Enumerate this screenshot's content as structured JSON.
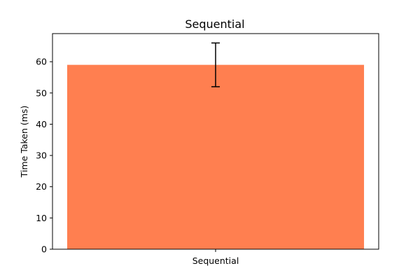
{
  "chart_data": {
    "type": "bar",
    "title": "Sequential",
    "xlabel": "",
    "ylabel": "Time Taken (ms)",
    "categories": [
      "Sequential"
    ],
    "values": [
      59
    ],
    "error": [
      7
    ],
    "ylim": [
      0,
      69
    ],
    "yticks": [
      0,
      10,
      20,
      30,
      40,
      50,
      60
    ],
    "grid": false,
    "colors": {
      "bar": "#ff7f50",
      "error_bar": "#000000",
      "axes": "#000000"
    }
  }
}
